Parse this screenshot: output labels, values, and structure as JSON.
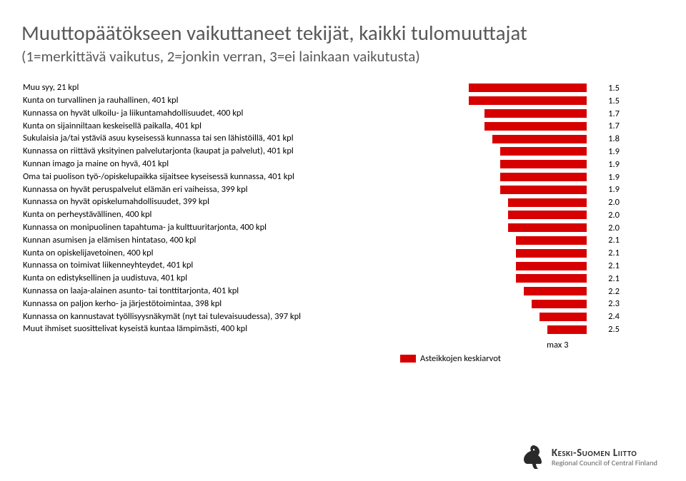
{
  "title": "Muuttopäätökseen vaikuttaneet tekijät, kaikki tulomuuttajat",
  "subtitle": "(1=merkittävä vaikutus, 2=jonkin verran, 3=ei lainkaan vaikutusta)",
  "chart": {
    "type": "bar",
    "orientation": "horizontal",
    "bar_color": "#d70000",
    "background_color": "#ffffff",
    "label_fontsize": 12.5,
    "scale_max": 3,
    "scale_min": 1,
    "max_label": "max  3",
    "legend_text": "Asteikkojen keskiarvot",
    "rows": [
      {
        "label": "Muu syy, 21 kpl",
        "value": 1.5
      },
      {
        "label": "Kunta on turvallinen ja rauhallinen, 401 kpl",
        "value": 1.5
      },
      {
        "label": "Kunnassa on hyvät ulkoilu- ja liikuntamahdollisuudet, 400 kpl",
        "value": 1.7
      },
      {
        "label": "Kunta on sijainniltaan keskeisellä paikalla, 401 kpl",
        "value": 1.7
      },
      {
        "label": "Sukulaisia ja/tai ystäviä asuu kyseisessä kunnassa tai sen lähistöillä, 401 kpl",
        "value": 1.8
      },
      {
        "label": "Kunnassa on riittävä yksityinen palvelutarjonta (kaupat ja palvelut), 401 kpl",
        "value": 1.9
      },
      {
        "label": "Kunnan imago ja maine on hyvä, 401 kpl",
        "value": 1.9
      },
      {
        "label": "Oma tai puolison työ-/opiskelupaikka sijaitsee kyseisessä kunnassa, 401 kpl",
        "value": 1.9
      },
      {
        "label": "Kunnassa on hyvät peruspalvelut elämän eri vaiheissa, 399 kpl",
        "value": 1.9
      },
      {
        "label": "Kunnassa on hyvät opiskelumahdollisuudet, 399 kpl",
        "value": 2.0
      },
      {
        "label": "Kunta on perheystävällinen, 400 kpl",
        "value": 2.0
      },
      {
        "label": "Kunnassa on monipuolinen tapahtuma- ja kulttuuritarjonta, 400 kpl",
        "value": 2.0
      },
      {
        "label": "Kunnan asumisen ja elämisen hintataso, 400 kpl",
        "value": 2.1
      },
      {
        "label": "Kunta on opiskelijavetoinen, 400 kpl",
        "value": 2.1
      },
      {
        "label": "Kunnassa on toimivat liikenneyhteydet, 401 kpl",
        "value": 2.1
      },
      {
        "label": "Kunta on edistyksellinen ja uudistuva, 401 kpl",
        "value": 2.1
      },
      {
        "label": "Kunnassa on laaja-alainen asunto- tai tonttitarjonta, 401 kpl",
        "value": 2.2
      },
      {
        "label": "Kunnassa on paljon kerho- ja järjestötoimintaa, 398 kpl",
        "value": 2.3
      },
      {
        "label": "Kunnassa on kannustavat työllisyysnäkymät (nyt tai tulevaisuudessa), 397 kpl",
        "value": 2.4
      },
      {
        "label": "Muut ihmiset suosittelivat kyseistä kuntaa lämpimästi, 400 kpl",
        "value": 2.5
      }
    ]
  },
  "logo": {
    "main": "Keski-Suomen Liitto",
    "sub": "Regional Council of Central Finland"
  }
}
